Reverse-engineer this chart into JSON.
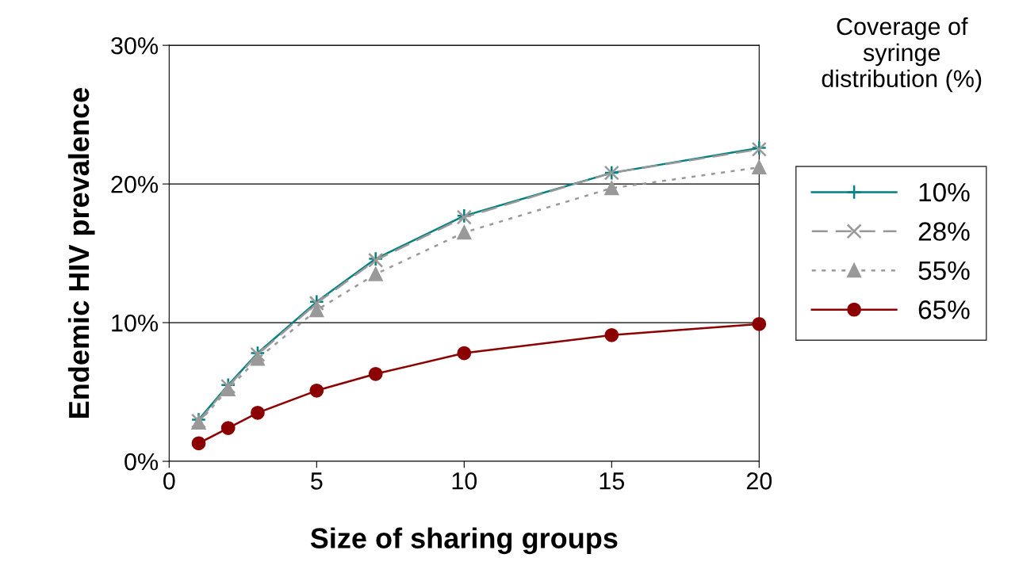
{
  "chart_data": {
    "type": "line",
    "xlabel": "Size of sharing groups",
    "ylabel": "Endemic HIV prevalence",
    "legend_title": "Coverage of\nsyringe\ndistribution (%)",
    "x": [
      1,
      2,
      3,
      5,
      7,
      10,
      15,
      20
    ],
    "xlim": [
      0,
      20
    ],
    "xticks": [
      0,
      5,
      10,
      15,
      20
    ],
    "ylim": [
      0,
      30
    ],
    "yticks": [
      {
        "value": 0,
        "label": "0%"
      },
      {
        "value": 10,
        "label": "10%"
      },
      {
        "value": 20,
        "label": "20%"
      },
      {
        "value": 30,
        "label": "30%"
      }
    ],
    "grid": "y",
    "legend": "right",
    "series": [
      {
        "name": "10%",
        "color": "#008080",
        "marker": "cross",
        "line_style": "solid",
        "values": [
          3.0,
          5.5,
          7.8,
          11.5,
          14.6,
          17.7,
          20.8,
          22.6
        ]
      },
      {
        "name": "28%",
        "color": "#999999",
        "marker": "x",
        "line_style": "dashed",
        "values": [
          2.9,
          5.4,
          7.7,
          11.4,
          14.5,
          17.6,
          20.8,
          22.5
        ]
      },
      {
        "name": "55%",
        "color": "#999999",
        "marker": "triangle",
        "line_style": "dotted",
        "values": [
          2.8,
          5.2,
          7.4,
          10.9,
          13.5,
          16.5,
          19.7,
          21.2
        ]
      },
      {
        "name": "65%",
        "color": "#8b0000",
        "marker": "circle",
        "line_style": "solid",
        "values": [
          1.3,
          2.4,
          3.5,
          5.1,
          6.3,
          7.8,
          9.1,
          9.9
        ]
      }
    ]
  }
}
